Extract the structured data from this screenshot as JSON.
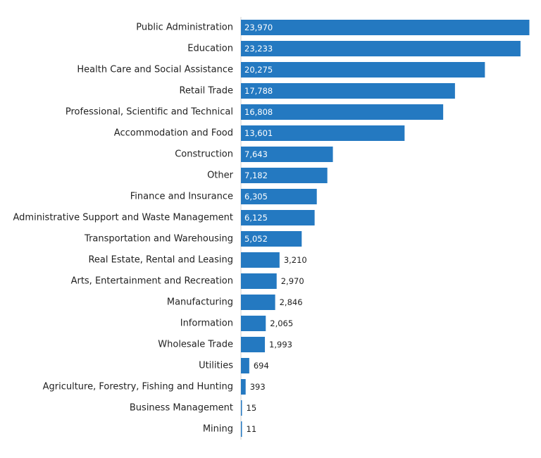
{
  "chart_data": {
    "type": "bar",
    "orientation": "horizontal",
    "title": "",
    "xlabel": "",
    "ylabel": "",
    "grid": false,
    "legend": "none",
    "bar_color": "#2479c1",
    "label_color_inside": "#ffffff",
    "label_color_outside": "#222222",
    "categories": [
      "Public Administration",
      "Education",
      "Health Care and Social Assistance",
      "Retail Trade",
      "Professional, Scientific and Technical",
      "Accommodation and Food",
      "Construction",
      "Other",
      "Finance and Insurance",
      "Administrative Support and Waste Management",
      "Transportation and Warehousing",
      "Real Estate, Rental and Leasing",
      "Arts, Entertainment and Recreation",
      "Manufacturing",
      "Information",
      "Wholesale Trade",
      "Utilities",
      "Agriculture, Forestry, Fishing and Hunting",
      "Business Management",
      "Mining"
    ],
    "values": [
      23970,
      23233,
      20275,
      17788,
      16808,
      13601,
      7643,
      7182,
      6305,
      6125,
      5052,
      3210,
      2970,
      2846,
      2065,
      1993,
      694,
      393,
      15,
      11
    ],
    "value_labels": [
      "23,970",
      "23,233",
      "20,275",
      "17,788",
      "16,808",
      "13,601",
      "7,643",
      "7,182",
      "6,305",
      "6,125",
      "5,052",
      "3,210",
      "2,970",
      "2,846",
      "2,065",
      "1,993",
      "694",
      "393",
      "15",
      "11"
    ],
    "xlim": [
      0,
      24000
    ]
  }
}
